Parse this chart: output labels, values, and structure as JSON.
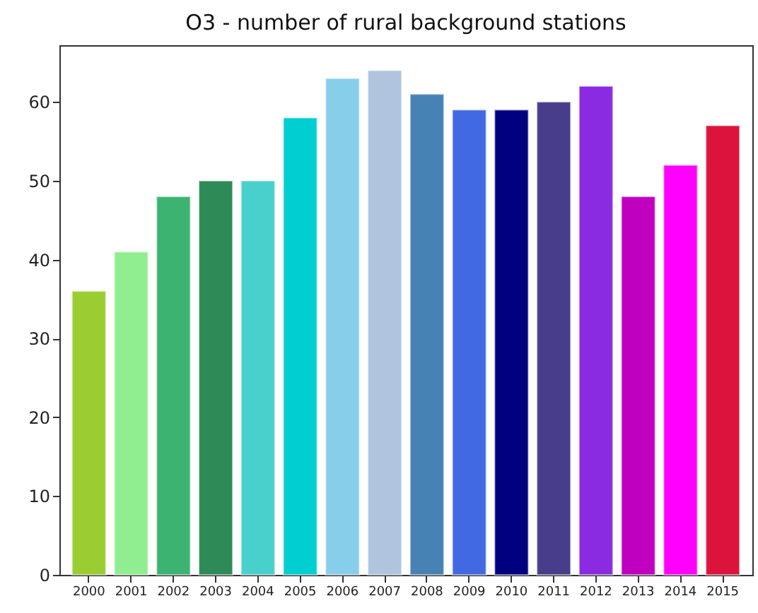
{
  "chart_data": {
    "type": "bar",
    "title": "O3 - number of rural background stations",
    "categories": [
      "2000",
      "2001",
      "2002",
      "2003",
      "2004",
      "2005",
      "2006",
      "2007",
      "2008",
      "2009",
      "2010",
      "2011",
      "2012",
      "2013",
      "2014",
      "2015"
    ],
    "values": [
      36,
      41,
      48,
      50,
      50,
      58,
      63,
      64,
      61,
      59,
      59,
      60,
      62,
      48,
      52,
      57
    ],
    "colors": [
      "#9acd32",
      "#90ee90",
      "#3cb371",
      "#2e8b57",
      "#48d1cc",
      "#00ced1",
      "#87ceeb",
      "#b0c4de",
      "#4682b4",
      "#4169e1",
      "#000080",
      "#483d8b",
      "#8a2be2",
      "#bf00bf",
      "#ff00ff",
      "#dc143c"
    ],
    "ylim": [
      0,
      67.2
    ],
    "yticks": [
      0,
      10,
      20,
      30,
      40,
      50,
      60
    ],
    "grid": false
  }
}
